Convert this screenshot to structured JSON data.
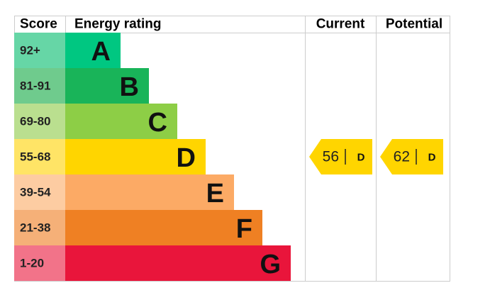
{
  "header": {
    "score": "Score",
    "rating": "Energy rating",
    "current": "Current",
    "potential": "Potential"
  },
  "bands": [
    {
      "score": "92+",
      "letter": "A",
      "color": "#00c781",
      "light": "#66d6a6"
    },
    {
      "score": "81-91",
      "letter": "B",
      "color": "#19b459",
      "light": "#6fcb8d"
    },
    {
      "score": "69-80",
      "letter": "C",
      "color": "#8dce46",
      "light": "#badf8f"
    },
    {
      "score": "55-68",
      "letter": "D",
      "color": "#ffd500",
      "light": "#ffe466"
    },
    {
      "score": "39-54",
      "letter": "E",
      "color": "#fcaa65",
      "light": "#fdcca2"
    },
    {
      "score": "21-38",
      "letter": "F",
      "color": "#ef8023",
      "light": "#f5b078"
    },
    {
      "score": "1-20",
      "letter": "G",
      "color": "#e9153b",
      "light": "#f27389"
    }
  ],
  "current": {
    "value": 56,
    "band": "D"
  },
  "potential": {
    "value": 62,
    "band": "D"
  }
}
